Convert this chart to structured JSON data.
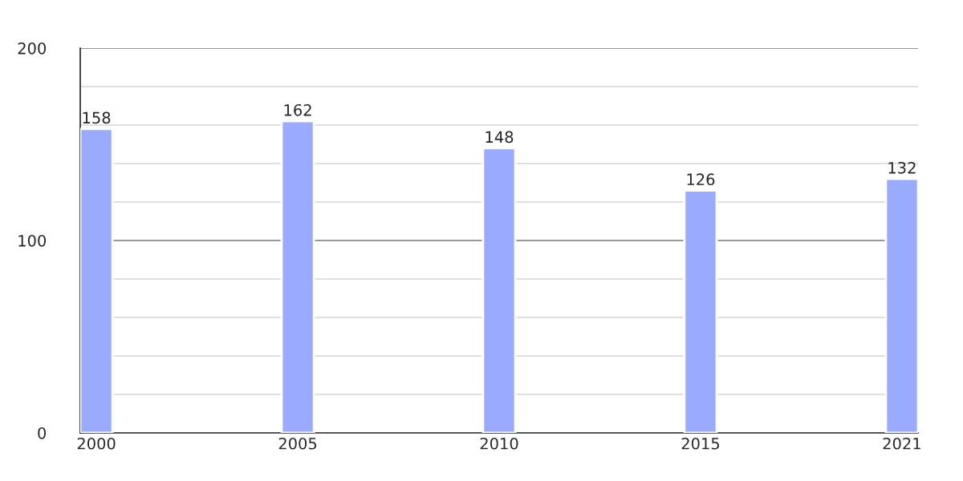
{
  "chart_data": {
    "type": "bar",
    "categories": [
      "2000",
      "2005",
      "2010",
      "2015",
      "2021"
    ],
    "series": [
      {
        "color": "#99aaff",
        "values": [
          158,
          162,
          148,
          126,
          132
        ]
      }
    ],
    "ylim": [
      0,
      200
    ],
    "yticks": [
      0,
      {
        "value": 20,
        "label": null
      },
      {
        "value": 40,
        "label": null
      },
      {
        "value": 60,
        "label": null
      },
      {
        "value": 80,
        "label": null
      },
      100,
      {
        "value": 120,
        "label": null
      },
      {
        "value": 140,
        "label": null
      },
      {
        "value": 160,
        "label": null
      },
      {
        "value": 180,
        "label": null
      },
      200
    ],
    "grid": "y",
    "ref_lines": [
      {
        "axis": "y",
        "value": 100,
        "color": "#999999"
      },
      {
        "axis": "y",
        "value": 200,
        "color": "#999999"
      }
    ],
    "data_labels": true
  }
}
